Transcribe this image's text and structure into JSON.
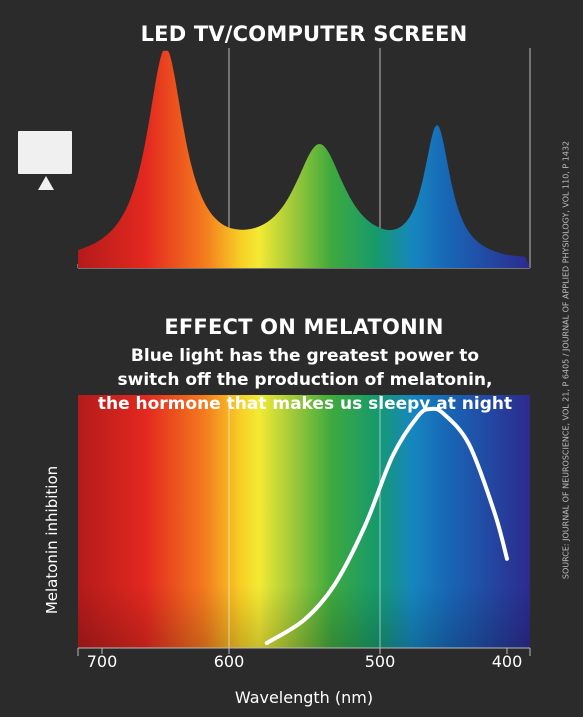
{
  "chart_data": [
    {
      "type": "area",
      "title": "LED TV/COMPUTER SCREEN",
      "xlabel": "",
      "ylabel": "",
      "x_direction": "descending",
      "grid": true,
      "peaks": [
        {
          "wavelength": 650,
          "relative_intensity": 1.0
        },
        {
          "wavelength": 540,
          "relative_intensity": 0.53
        },
        {
          "wavelength": 455,
          "relative_intensity": 0.62
        }
      ]
    },
    {
      "type": "line",
      "title": "EFFECT ON MELATONIN",
      "subtitle": "Blue light has the greatest power to\nswitch off the production of melatonin,\nthe hormone that makes us sleepy at night",
      "xlabel": "Wavelength (nm)",
      "ylabel": "Melatonin inhibition",
      "x_ticks": [
        700,
        600,
        500,
        400
      ],
      "xlim": [
        400,
        700
      ],
      "x_direction": "descending",
      "grid": true,
      "x": [
        575,
        550,
        530,
        510,
        490,
        470,
        460,
        450,
        430,
        410,
        400
      ],
      "y": [
        0.0,
        0.1,
        0.25,
        0.5,
        0.8,
        0.97,
        1.0,
        0.98,
        0.85,
        0.56,
        0.36
      ]
    }
  ],
  "source": "SOURCE: JOURNAL OF NEUROSCIENCE, VOL 21, P 6405 / JOURNAL OF APPLIED PHYSIOLOGY, VOL 110, P 1432",
  "icon": {
    "name": "monitor-icon",
    "color": "#f0f0f0"
  },
  "colors": {
    "background": "#2b2b2b",
    "curve": "#ffffff",
    "grid": "#bbbbbb"
  }
}
